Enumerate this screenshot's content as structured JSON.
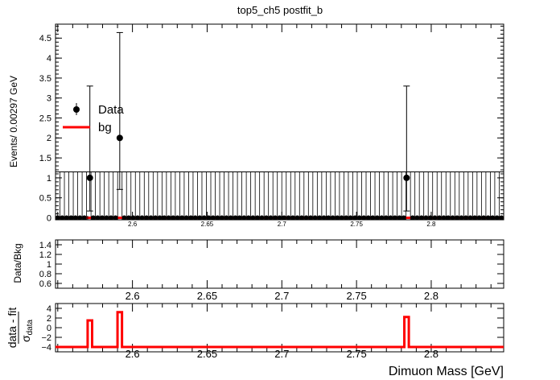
{
  "title": "top5_ch5   postfit_b",
  "x_axis_label": "Dimuon Mass [GeV]",
  "chart_data": [
    {
      "type": "scatter",
      "panel": "main",
      "ylabel": "Events/ 0.00297 GeV",
      "xlim": [
        2.5485,
        2.8485
      ],
      "ylim": [
        -0.05,
        4.85
      ],
      "yticks": [
        0,
        0.5,
        1,
        1.5,
        2,
        2.5,
        3,
        3.5,
        4,
        4.5
      ],
      "ytick_labels": [
        "0",
        "0.5",
        "1",
        "1.5",
        "2",
        "2.5",
        "3",
        "3.5",
        "4",
        "4.5"
      ],
      "xticks": [
        2.6,
        2.65,
        2.7,
        2.75,
        2.8
      ],
      "xtick_labels": [
        "2.6",
        "2.65",
        "2.7",
        "2.75",
        "2.8"
      ],
      "legend": [
        {
          "label": "Data",
          "marker": "point"
        },
        {
          "label": "bg",
          "marker": "line",
          "color": "#ff0000"
        }
      ],
      "legend_position": "top-left",
      "bin_width": 0.00297,
      "data_points": [
        {
          "x": 2.5715,
          "y": 1,
          "err_up": 2.3,
          "err_down": 0.83
        },
        {
          "x": 2.5915,
          "y": 2,
          "err_up": 2.64,
          "err_down": 1.29
        },
        {
          "x": 2.7835,
          "y": 1,
          "err_up": 2.3,
          "err_down": 0.83
        }
      ],
      "bg_level": 0.0,
      "bg_uncertainty_band": [
        0,
        1.15
      ],
      "bg_color": "#ff0000"
    },
    {
      "type": "line",
      "panel": "ratio",
      "ylabel": "Data/Bkg",
      "ylim": [
        0.5,
        1.5
      ],
      "yticks": [
        0.6,
        0.8,
        1,
        1.2,
        1.4
      ],
      "ytick_labels": [
        "0.6",
        "0.8",
        "1",
        "1.2",
        "1.4"
      ],
      "xticks": [
        2.6,
        2.65,
        2.7,
        2.75,
        2.8
      ],
      "xtick_labels": [
        "2.6",
        "2.65",
        "2.7",
        "2.75",
        "2.8"
      ]
    },
    {
      "type": "line",
      "panel": "pull",
      "ylabel": "data - fit / σdata",
      "ylabel_numerator": "data - fit",
      "ylabel_denominator": "σ",
      "ylabel_denominator_sub": "data",
      "ylim": [
        -5,
        5
      ],
      "yticks": [
        -4,
        -2,
        0,
        2,
        4
      ],
      "ytick_labels": [
        "−4",
        "−2",
        "0",
        "2",
        "4"
      ],
      "xticks": [
        2.6,
        2.65,
        2.7,
        2.75,
        2.8
      ],
      "xtick_labels": [
        "2.6",
        "2.65",
        "2.7",
        "2.75",
        "2.8"
      ],
      "baseline": -4,
      "spikes": [
        {
          "x0": 2.57,
          "x1": 2.573,
          "y": 1.5
        },
        {
          "x0": 2.59,
          "x1": 2.593,
          "y": 3.2
        },
        {
          "x0": 2.782,
          "x1": 2.785,
          "y": 2.2
        }
      ],
      "line_color": "#ff0000"
    }
  ]
}
